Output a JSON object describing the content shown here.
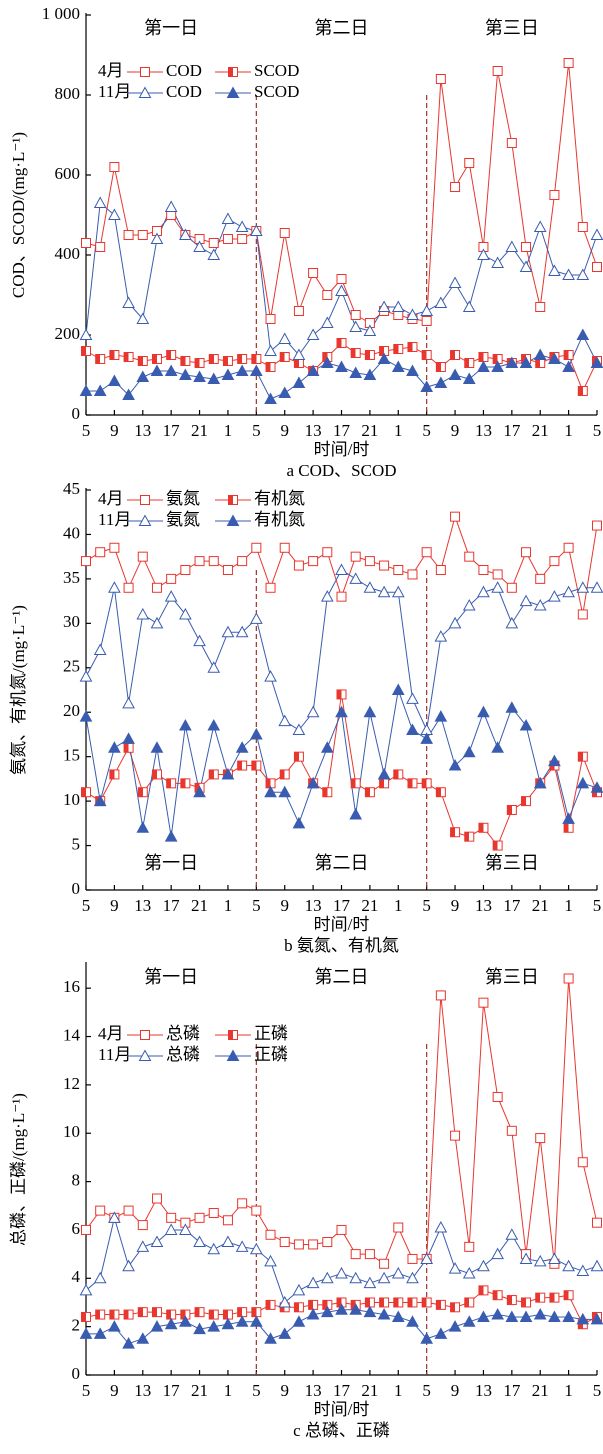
{
  "chart_data": [
    {
      "type": "line",
      "caption": "a COD、SCOD",
      "x_label": "时间/时",
      "y_label": "COD、SCOD/(mg·L⁻¹)",
      "x": [
        5,
        7,
        9,
        11,
        13,
        15,
        17,
        19,
        21,
        23,
        25,
        27,
        29,
        31,
        33,
        35,
        37,
        39,
        41,
        43,
        45,
        47,
        49,
        51,
        53,
        55,
        57,
        59,
        61,
        63,
        65,
        67,
        69,
        71,
        73,
        75,
        77
      ],
      "xlim": [
        5,
        77
      ],
      "xticks": [
        5,
        9,
        13,
        17,
        21,
        {
          "value": 25,
          "label": "1"
        },
        {
          "value": 29,
          "label": "5"
        },
        {
          "value": 33,
          "label": "9"
        },
        {
          "value": 37,
          "label": "13"
        },
        {
          "value": 41,
          "label": "17"
        },
        {
          "value": 45,
          "label": "21"
        },
        {
          "value": 49,
          "label": "1"
        },
        {
          "value": 53,
          "label": "5"
        },
        {
          "value": 57,
          "label": "9"
        },
        {
          "value": 61,
          "label": "13"
        },
        {
          "value": 65,
          "label": "17"
        },
        {
          "value": 69,
          "label": "21"
        },
        {
          "value": 73,
          "label": "1"
        },
        {
          "value": 77,
          "label": "5"
        }
      ],
      "ylim": [
        0,
        1000
      ],
      "yticks": [
        0,
        200,
        400,
        600,
        800,
        {
          "value": 1000,
          "label": "1 000"
        }
      ],
      "dividers": [
        29,
        53
      ],
      "annotations": [
        "第一日",
        "第二日",
        "第三日"
      ],
      "annotation_position": "top",
      "legend_groups": [
        "4月",
        "11月"
      ],
      "series": [
        {
          "name": "COD",
          "color": "#e8372f",
          "marker": "square-open",
          "values": [
            430,
            420,
            620,
            450,
            450,
            460,
            500,
            450,
            440,
            430,
            440,
            440,
            460,
            240,
            455,
            260,
            355,
            300,
            340,
            250,
            230,
            260,
            250,
            240,
            235,
            840,
            570,
            630,
            420,
            860,
            680,
            420,
            270,
            550,
            880,
            470,
            370
          ]
        },
        {
          "name": "SCOD",
          "color": "#e8372f",
          "marker": "square-half",
          "values": [
            160,
            140,
            150,
            145,
            135,
            140,
            150,
            135,
            130,
            140,
            135,
            140,
            140,
            120,
            145,
            130,
            110,
            145,
            180,
            155,
            150,
            160,
            165,
            170,
            150,
            120,
            150,
            130,
            145,
            140,
            130,
            140,
            130,
            145,
            150,
            60,
            135
          ]
        },
        {
          "name": "COD",
          "color": "#3a5cb0",
          "marker": "triangle-open",
          "values": [
            200,
            530,
            500,
            280,
            240,
            440,
            520,
            450,
            420,
            400,
            490,
            470,
            460,
            160,
            190,
            150,
            200,
            230,
            310,
            220,
            210,
            270,
            270,
            250,
            260,
            280,
            330,
            270,
            400,
            380,
            420,
            370,
            470,
            360,
            350,
            350,
            450
          ]
        },
        {
          "name": "SCOD",
          "color": "#3a5cb0",
          "marker": "triangle-filled",
          "values": [
            60,
            60,
            85,
            50,
            95,
            110,
            110,
            100,
            95,
            90,
            100,
            110,
            110,
            40,
            55,
            80,
            110,
            130,
            120,
            105,
            100,
            140,
            120,
            110,
            70,
            80,
            100,
            90,
            120,
            120,
            130,
            130,
            150,
            140,
            120,
            200,
            130
          ]
        }
      ]
    },
    {
      "type": "line",
      "caption": "b 氨氮、有机氮",
      "x_label": "时间/时",
      "y_label": "氨氮、有机氮/(mg·L⁻¹)",
      "x": [
        5,
        7,
        9,
        11,
        13,
        15,
        17,
        19,
        21,
        23,
        25,
        27,
        29,
        31,
        33,
        35,
        37,
        39,
        41,
        43,
        45,
        47,
        49,
        51,
        53,
        55,
        57,
        59,
        61,
        63,
        65,
        67,
        69,
        71,
        73,
        75,
        77
      ],
      "xlim": [
        5,
        77
      ],
      "xticks": [
        5,
        9,
        13,
        17,
        21,
        {
          "value": 25,
          "label": "1"
        },
        {
          "value": 29,
          "label": "5"
        },
        {
          "value": 33,
          "label": "9"
        },
        {
          "value": 37,
          "label": "13"
        },
        {
          "value": 41,
          "label": "17"
        },
        {
          "value": 45,
          "label": "21"
        },
        {
          "value": 49,
          "label": "1"
        },
        {
          "value": 53,
          "label": "5"
        },
        {
          "value": 57,
          "label": "9"
        },
        {
          "value": 61,
          "label": "13"
        },
        {
          "value": 65,
          "label": "17"
        },
        {
          "value": 69,
          "label": "21"
        },
        {
          "value": 73,
          "label": "1"
        },
        {
          "value": 77,
          "label": "5"
        }
      ],
      "ylim": [
        0,
        45
      ],
      "yticks": [
        0,
        5,
        10,
        15,
        20,
        25,
        30,
        35,
        40,
        45
      ],
      "dividers": [
        29,
        53
      ],
      "annotations": [
        "第一日",
        "第二日",
        "第三日"
      ],
      "annotation_position": "bottom",
      "legend_groups": [
        "4月",
        "11月"
      ],
      "series": [
        {
          "name": "氨氮",
          "color": "#e8372f",
          "marker": "square-open",
          "values": [
            37,
            38,
            38.5,
            34,
            37.5,
            34,
            35,
            36,
            37,
            37,
            36,
            37,
            38.5,
            34,
            38.5,
            36.5,
            37,
            38,
            33,
            37.5,
            37,
            36.5,
            36,
            35.5,
            38,
            36,
            42,
            37.5,
            36,
            35.5,
            34,
            38,
            35,
            37,
            38.5,
            31,
            41
          ]
        },
        {
          "name": "有机氮",
          "color": "#e8372f",
          "marker": "square-half",
          "values": [
            11,
            10,
            13,
            16,
            11,
            13,
            12,
            12,
            11.5,
            13,
            13,
            14,
            14,
            12,
            13,
            15,
            12,
            11,
            22,
            12,
            11,
            12,
            13,
            12,
            12,
            11,
            6.5,
            6,
            7,
            5,
            9,
            10,
            12,
            14,
            7,
            15,
            11
          ]
        },
        {
          "name": "氨氮",
          "color": "#3a5cb0",
          "marker": "triangle-open",
          "values": [
            24,
            27,
            34,
            21,
            31,
            30,
            33,
            31,
            28,
            25,
            29,
            29,
            30.5,
            24,
            19,
            18,
            20,
            33,
            36,
            35,
            34,
            33.5,
            33.5,
            21.5,
            18,
            28.5,
            30,
            32,
            33.5,
            34,
            30,
            32.5,
            32,
            33,
            33.5,
            34,
            34
          ]
        },
        {
          "name": "有机氮",
          "color": "#3a5cb0",
          "marker": "triangle-filled",
          "values": [
            19.5,
            10,
            16,
            17,
            7,
            16,
            6,
            18.5,
            11,
            18.5,
            13,
            16,
            17.5,
            11,
            11,
            7.5,
            12,
            16,
            20,
            8.5,
            20,
            13,
            22.5,
            18,
            17,
            19.5,
            14,
            15.5,
            20,
            16,
            20.5,
            18.5,
            12,
            14.5,
            8,
            12,
            11.5
          ]
        }
      ]
    },
    {
      "type": "line",
      "caption": "c 总磷、正磷",
      "x_label": "时间/时",
      "y_label": "总磷、正磷/(mg·L⁻¹)",
      "x": [
        5,
        7,
        9,
        11,
        13,
        15,
        17,
        19,
        21,
        23,
        25,
        27,
        29,
        31,
        33,
        35,
        37,
        39,
        41,
        43,
        45,
        47,
        49,
        51,
        53,
        55,
        57,
        59,
        61,
        63,
        65,
        67,
        69,
        71,
        73,
        75,
        77
      ],
      "xlim": [
        5,
        77
      ],
      "xticks": [
        5,
        9,
        13,
        17,
        21,
        {
          "value": 25,
          "label": "1"
        },
        {
          "value": 29,
          "label": "5"
        },
        {
          "value": 33,
          "label": "9"
        },
        {
          "value": 37,
          "label": "13"
        },
        {
          "value": 41,
          "label": "17"
        },
        {
          "value": 45,
          "label": "21"
        },
        {
          "value": 49,
          "label": "1"
        },
        {
          "value": 53,
          "label": "5"
        },
        {
          "value": 57,
          "label": "9"
        },
        {
          "value": 61,
          "label": "13"
        },
        {
          "value": 65,
          "label": "17"
        },
        {
          "value": 69,
          "label": "21"
        },
        {
          "value": 73,
          "label": "1"
        },
        {
          "value": 77,
          "label": "5"
        }
      ],
      "ylim": [
        0,
        17
      ],
      "yticks": [
        0,
        2,
        4,
        6,
        8,
        10,
        12,
        14,
        16
      ],
      "dividers": [
        29,
        53
      ],
      "annotations": [
        "第一日",
        "第二日",
        "第三日"
      ],
      "annotation_position": "top",
      "legend_groups": [
        "4月",
        "11月"
      ],
      "series": [
        {
          "name": "总磷",
          "color": "#e8372f",
          "marker": "square-open",
          "values": [
            6,
            6.8,
            6.5,
            6.8,
            6.2,
            7.3,
            6.5,
            6.3,
            6.5,
            6.7,
            6.4,
            7.1,
            6.8,
            5.8,
            5.5,
            5.4,
            5.4,
            5.5,
            6,
            5,
            5,
            4.6,
            6.1,
            4.8,
            4.8,
            15.7,
            9.9,
            5.3,
            15.4,
            11.5,
            10.1,
            5,
            9.8,
            4.6,
            16.4,
            8.8,
            6.3
          ]
        },
        {
          "name": "正磷",
          "color": "#e8372f",
          "marker": "square-half",
          "values": [
            2.4,
            2.5,
            2.5,
            2.5,
            2.6,
            2.6,
            2.5,
            2.5,
            2.6,
            2.5,
            2.5,
            2.6,
            2.6,
            2.9,
            2.8,
            2.8,
            2.9,
            2.9,
            3,
            2.9,
            3,
            3,
            3,
            3,
            3,
            2.9,
            2.8,
            3,
            3.5,
            3.3,
            3.1,
            3,
            3.2,
            3.2,
            3.3,
            2.1,
            2.4
          ]
        },
        {
          "name": "总磷",
          "color": "#3a5cb0",
          "marker": "triangle-open",
          "values": [
            3.5,
            4,
            6.5,
            4.5,
            5.3,
            5.5,
            6,
            6,
            5.5,
            5.2,
            5.5,
            5.3,
            5.2,
            4.7,
            3,
            3.5,
            3.8,
            4,
            4.2,
            4,
            3.8,
            4,
            4.2,
            4,
            4.8,
            6.1,
            4.4,
            4.2,
            4.5,
            5,
            5.8,
            4.8,
            4.7,
            4.8,
            4.5,
            4.3,
            4.5
          ]
        },
        {
          "name": "正磷",
          "color": "#3a5cb0",
          "marker": "triangle-filled",
          "values": [
            1.7,
            1.7,
            2,
            1.3,
            1.5,
            2,
            2.1,
            2.2,
            1.9,
            2,
            2.1,
            2.2,
            2.2,
            1.5,
            1.7,
            2.2,
            2.5,
            2.6,
            2.7,
            2.7,
            2.6,
            2.5,
            2.4,
            2.2,
            1.5,
            1.7,
            2,
            2.2,
            2.4,
            2.5,
            2.4,
            2.4,
            2.5,
            2.4,
            2.4,
            2.3,
            2.3
          ]
        }
      ]
    }
  ]
}
